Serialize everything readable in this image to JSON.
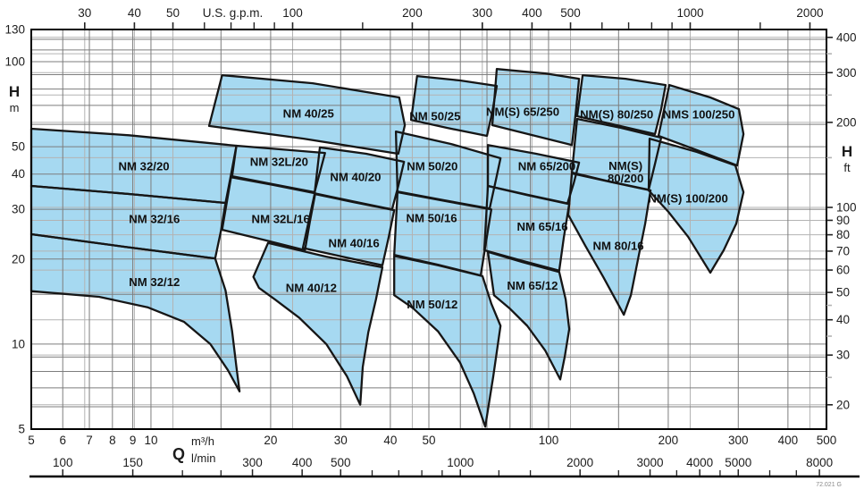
{
  "chart_data": {
    "type": "area",
    "title": "",
    "description": "Pump selection coverage chart: head H versus flow Q on log-log axes, with shaded operating ranges for NM / NM(S) / NMS pump models",
    "colors": {
      "region_fill": "#a6d9f1",
      "region_stroke": "#161616",
      "grid_dark": "#7d7d7d",
      "grid_light": "#b3b3b3",
      "frame": "#000000",
      "tick": "#222222",
      "background": "#ffffff"
    },
    "axes": {
      "x_m3h": {
        "unit": "m³/h",
        "min": 5,
        "max": 500,
        "tick_labels": [
          5,
          6,
          7,
          8,
          9,
          10,
          20,
          30,
          40,
          50,
          100,
          200,
          300,
          400,
          500
        ]
      },
      "x_lmin": {
        "unit": "l/min",
        "tick_labels": [
          100,
          150,
          300,
          400,
          500,
          1000,
          2000,
          3000,
          4000,
          5000,
          8000
        ],
        "minor_ticks": [
          200,
          250,
          600,
          700,
          800,
          900,
          1250,
          1500,
          2500,
          3500,
          4500,
          6000,
          7000
        ]
      },
      "x_gpm": {
        "unit": "U.S. g.p.m.",
        "tick_labels": [
          30,
          40,
          50,
          100,
          200,
          300,
          400,
          500,
          1000,
          2000
        ],
        "minor_ticks": [
          60,
          70,
          80,
          90,
          150,
          600,
          700,
          800,
          900,
          1500
        ]
      },
      "y_m": {
        "letter": "H",
        "unit": "m",
        "min": 5,
        "max": 130,
        "tick_labels": [
          5,
          10,
          20,
          30,
          40,
          50,
          100,
          130
        ]
      },
      "y_ft": {
        "letter": "H",
        "unit": "ft",
        "tick_labels": [
          20,
          30,
          40,
          50,
          60,
          70,
          80,
          90,
          100,
          200,
          300,
          400
        ],
        "minor_ticks": [
          25,
          35,
          45,
          150,
          250,
          350
        ]
      },
      "q_letter": "Q"
    },
    "conversions": {
      "gpm_per_m3h": 4.4029,
      "lmin_per_m3h": 16.6667,
      "ft_per_m": 3.2808
    },
    "grid": {
      "v_m3h": [
        6,
        7,
        8,
        9,
        10,
        15,
        20,
        30,
        40,
        50,
        60,
        70,
        80,
        90,
        100,
        150,
        200,
        300,
        400
      ],
      "v_gpm": [
        30,
        40,
        50,
        100,
        200,
        300,
        400,
        500,
        1000,
        2000
      ],
      "h_m": [
        6,
        7,
        8,
        9,
        10,
        15,
        20,
        30,
        40,
        50,
        60,
        70,
        80,
        90,
        100,
        110,
        120
      ],
      "h_ft": [
        20,
        30,
        40,
        50,
        60,
        70,
        80,
        90,
        100,
        150,
        200,
        250,
        300,
        350,
        400
      ]
    },
    "regions": [
      {
        "name": "NM 32/20",
        "label": {
          "q": 9.6,
          "h": 42.6,
          "lines": [
            "NM 32/20"
          ]
        },
        "points": [
          [
            5,
            57.9
          ],
          [
            8.8,
            54.9
          ],
          [
            16.4,
            50.4
          ],
          [
            15.9,
            39.9
          ],
          [
            15.4,
            31.6
          ],
          [
            8.8,
            34.0
          ],
          [
            5,
            36.3
          ]
        ]
      },
      {
        "name": "NM 32L/20",
        "label": {
          "q": 21.0,
          "h": 44.2,
          "lines": [
            "NM 32L/20"
          ]
        },
        "points": [
          [
            16.4,
            50.4
          ],
          [
            21.3,
            48.9
          ],
          [
            27.4,
            47.5
          ],
          [
            26.6,
            40.5
          ],
          [
            25.8,
            34.5
          ],
          [
            20.3,
            36.8
          ],
          [
            16.0,
            39.3
          ]
        ]
      },
      {
        "name": "NM 40/25",
        "label": {
          "q": 24.9,
          "h": 65.5,
          "lines": [
            "NM 40/25"
          ]
        },
        "points": [
          [
            15.1,
            89.6
          ],
          [
            25.5,
            83.9
          ],
          [
            42.1,
            74.7
          ],
          [
            43.5,
            59.6
          ],
          [
            41.9,
            47.2
          ],
          [
            24.2,
            53.4
          ],
          [
            14.0,
            59.2
          ]
        ]
      },
      {
        "name": "NM 50/25",
        "label": {
          "q": 51.8,
          "h": 64.1,
          "lines": [
            "NM 50/25"
          ]
        },
        "points": [
          [
            46.7,
            88.9
          ],
          [
            59.9,
            85.8
          ],
          [
            74.1,
            82.1
          ],
          [
            72.2,
            66.4
          ],
          [
            70.0,
            54.6
          ],
          [
            55.5,
            58.3
          ],
          [
            45.1,
            62.2
          ]
        ]
      },
      {
        "name": "NM(S) 65/250",
        "label": {
          "q": 86.1,
          "h": 66.4,
          "lines": [
            "NM(S) 65/250"
          ]
        },
        "points": [
          [
            74.1,
            94.2
          ],
          [
            98.0,
            90.9
          ],
          [
            119.3,
            87.0
          ],
          [
            117.0,
            65.5
          ],
          [
            114.5,
            50.7
          ],
          [
            90.7,
            55.0
          ],
          [
            72.2,
            59.6
          ]
        ]
      },
      {
        "name": "NM(S) 80/250",
        "label": {
          "q": 148.3,
          "h": 65.0,
          "lines": [
            "NM(S) 80/250"
          ]
        },
        "points": [
          [
            121.8,
            89.6
          ],
          [
            156.2,
            87.0
          ],
          [
            197.0,
            82.7
          ],
          [
            192.0,
            67.9
          ],
          [
            185.2,
            55.4
          ],
          [
            148.3,
            59.6
          ],
          [
            118.0,
            64.1
          ]
        ]
      },
      {
        "name": "NMS 100/250",
        "label": {
          "q": 238.7,
          "h": 65.0,
          "lines": [
            "NMS 100/250"
          ]
        },
        "points": [
          [
            201.2,
            82.7
          ],
          [
            255.2,
            74.7
          ],
          [
            301.2,
            67.9
          ],
          [
            309.1,
            55.4
          ],
          [
            298.1,
            42.9
          ],
          [
            236.3,
            48.6
          ],
          [
            189.0,
            54.6
          ]
        ]
      },
      {
        "name": "NM 40/20",
        "label": {
          "q": 32.7,
          "h": 39.0,
          "lines": [
            "NM 40/20"
          ]
        },
        "points": [
          [
            26.6,
            49.7
          ],
          [
            34.8,
            47.2
          ],
          [
            43.3,
            44.2
          ],
          [
            41.9,
            36.3
          ],
          [
            40.4,
            30.0
          ],
          [
            32.2,
            32.0
          ],
          [
            25.8,
            34.2
          ]
        ]
      },
      {
        "name": "NM 50/20",
        "label": {
          "q": 51.0,
          "h": 42.6,
          "lines": [
            "NM 50/20"
          ]
        },
        "points": [
          [
            41.3,
            56.6
          ],
          [
            56.9,
            51.1
          ],
          [
            75.7,
            45.5
          ],
          [
            73.4,
            37.1
          ],
          [
            71.1,
            30.2
          ],
          [
            54.6,
            32.3
          ],
          [
            41.7,
            34.7
          ]
        ]
      },
      {
        "name": "NM 65/200",
        "label": {
          "q": 99.0,
          "h": 42.6,
          "lines": [
            "NM 65/200"
          ]
        },
        "points": [
          [
            70.4,
            50.7
          ],
          [
            93.1,
            47.2
          ],
          [
            119.3,
            43.9
          ],
          [
            115.7,
            37.1
          ],
          [
            111.5,
            31.4
          ],
          [
            88.4,
            33.7
          ],
          [
            70.4,
            36.3
          ]
        ]
      },
      {
        "name": "NM(S) 80/200",
        "label": {
          "q": 156.2,
          "h": 40.5,
          "lines": [
            "NM(S)",
            "80/200"
          ]
        },
        "points": [
          [
            118.0,
            62.7
          ],
          [
            152.1,
            58.3
          ],
          [
            192.0,
            53.8
          ],
          [
            185.2,
            43.5
          ],
          [
            178.6,
            35.2
          ],
          [
            143.0,
            37.6
          ],
          [
            114.5,
            40.5
          ]
        ]
      },
      {
        "name": "NM(S) 100/200",
        "label": {
          "q": 224.3,
          "h": 32.8,
          "lines": [
            "NM(S) 100/200"
          ]
        },
        "points": [
          [
            179.5,
            53.4
          ],
          [
            236.3,
            47.9
          ],
          [
            295.0,
            42.9
          ],
          [
            309.1,
            34.5
          ],
          [
            296.5,
            26.7
          ],
          [
            275.7,
            21.5
          ],
          [
            255.2,
            17.9
          ],
          [
            224.3,
            24.0
          ],
          [
            200.1,
            29.4
          ],
          [
            178.6,
            35.0
          ]
        ]
      },
      {
        "name": "NM 32/16",
        "label": {
          "q": 10.2,
          "h": 27.7,
          "lines": [
            "NM 32/16"
          ]
        },
        "points": [
          [
            5,
            36.3
          ],
          [
            8.8,
            34.0
          ],
          [
            15.4,
            31.6
          ],
          [
            15.0,
            25.2
          ],
          [
            14.5,
            20.1
          ],
          [
            8.6,
            22.1
          ],
          [
            5,
            24.5
          ]
        ]
      },
      {
        "name": "NM 32L/16",
        "label": {
          "q": 21.2,
          "h": 27.7,
          "lines": [
            "NM 32L/16"
          ]
        },
        "points": [
          [
            15.9,
            39.0
          ],
          [
            20.3,
            36.6
          ],
          [
            25.9,
            34.2
          ],
          [
            25.1,
            27.1
          ],
          [
            24.4,
            21.5
          ],
          [
            19.2,
            23.4
          ],
          [
            15.1,
            25.4
          ]
        ]
      },
      {
        "name": "NM 40/16",
        "label": {
          "q": 32.4,
          "h": 22.8,
          "lines": [
            "NM 40/16"
          ]
        },
        "points": [
          [
            25.8,
            34.0
          ],
          [
            32.4,
            31.8
          ],
          [
            40.9,
            29.8
          ],
          [
            39.6,
            23.8
          ],
          [
            38.2,
            19.0
          ],
          [
            30.3,
            20.4
          ],
          [
            24.1,
            21.9
          ]
        ]
      },
      {
        "name": "NM 50/16",
        "label": {
          "q": 50.8,
          "h": 27.9,
          "lines": [
            "NM 50/16"
          ]
        },
        "points": [
          [
            41.7,
            34.5
          ],
          [
            55.5,
            32.0
          ],
          [
            71.8,
            30.0
          ],
          [
            69.6,
            22.9
          ],
          [
            67.5,
            17.5
          ],
          [
            52.7,
            19.1
          ],
          [
            40.9,
            20.7
          ]
        ]
      },
      {
        "name": "NM 65/16",
        "label": {
          "q": 96.5,
          "h": 26.1,
          "lines": [
            "NM 65/16"
          ]
        },
        "points": [
          [
            70.4,
            36.3
          ],
          [
            89.3,
            33.7
          ],
          [
            112.7,
            31.4
          ],
          [
            109.2,
            23.8
          ],
          [
            106.4,
            18.2
          ],
          [
            86.1,
            19.7
          ],
          [
            68.9,
            21.5
          ]
        ]
      },
      {
        "name": "NM 80/16",
        "label": {
          "q": 149.8,
          "h": 22.3,
          "lines": [
            "NM 80/16"
          ]
        },
        "points": [
          [
            114.5,
            40.2
          ],
          [
            144.5,
            37.4
          ],
          [
            180.5,
            35.0
          ],
          [
            175.0,
            26.7
          ],
          [
            167.9,
            20.0
          ],
          [
            161.1,
            14.9
          ],
          [
            154.6,
            12.7
          ],
          [
            137.2,
            17.3
          ],
          [
            123.7,
            22.3
          ],
          [
            112.1,
            28.7
          ]
        ]
      },
      {
        "name": "NM 32/12",
        "label": {
          "q": 10.2,
          "h": 16.6,
          "lines": [
            "NM 32/12"
          ]
        },
        "points": [
          [
            5,
            24.5
          ],
          [
            8.6,
            22.1
          ],
          [
            14.5,
            20.1
          ],
          [
            15.4,
            15.5
          ],
          [
            16.0,
            11.1
          ],
          [
            16.4,
            8.3
          ],
          [
            16.7,
            6.8
          ],
          [
            15.6,
            8.1
          ],
          [
            14.1,
            10.0
          ],
          [
            12.1,
            12.0
          ],
          [
            9.8,
            13.5
          ],
          [
            7.4,
            14.7
          ],
          [
            5,
            15.4
          ]
        ]
      },
      {
        "name": "NM 40/12",
        "label": {
          "q": 25.3,
          "h": 15.8,
          "lines": [
            "NM 40/12"
          ]
        },
        "points": [
          [
            19.7,
            22.8
          ],
          [
            27.6,
            20.4
          ],
          [
            38.2,
            18.7
          ],
          [
            36.8,
            14.4
          ],
          [
            35.2,
            11.0
          ],
          [
            34.1,
            8.3
          ],
          [
            33.6,
            6.1
          ],
          [
            31.1,
            7.7
          ],
          [
            27.6,
            10.0
          ],
          [
            23.6,
            12.4
          ],
          [
            20.5,
            14.4
          ],
          [
            18.7,
            15.8
          ],
          [
            18.1,
            17.3
          ]
        ]
      },
      {
        "name": "NM 50/12",
        "label": {
          "q": 51.0,
          "h": 13.8,
          "lines": [
            "NM 50/12"
          ]
        },
        "points": [
          [
            40.9,
            20.5
          ],
          [
            52.7,
            19.0
          ],
          [
            68.2,
            17.4
          ],
          [
            71.8,
            13.9
          ],
          [
            75.7,
            11.6
          ],
          [
            72.6,
            7.7
          ],
          [
            69.3,
            5.1
          ],
          [
            64.8,
            6.7
          ],
          [
            59.9,
            8.6
          ],
          [
            52.7,
            11.1
          ],
          [
            45.6,
            13.4
          ],
          [
            40.9,
            14.9
          ]
        ]
      },
      {
        "name": "NM 65/12",
        "label": {
          "q": 91.1,
          "h": 16.1,
          "lines": [
            "NM 65/12"
          ]
        },
        "points": [
          [
            70.4,
            21.2
          ],
          [
            86.1,
            19.5
          ],
          [
            106.4,
            18.0
          ],
          [
            110.4,
            14.4
          ],
          [
            112.7,
            11.3
          ],
          [
            109.8,
            9.0
          ],
          [
            107.0,
            7.5
          ],
          [
            98.0,
            9.5
          ],
          [
            88.4,
            11.6
          ],
          [
            79.7,
            13.4
          ],
          [
            72.9,
            14.9
          ]
        ]
      }
    ],
    "footnote": "72.021 G"
  }
}
